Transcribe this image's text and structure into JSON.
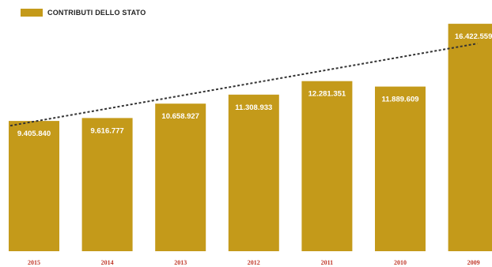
{
  "legend": {
    "label": "CONTRIBUTI DELLO STATO",
    "color": "#C49A1A"
  },
  "chart_data": {
    "type": "bar",
    "categories": [
      "2015",
      "2014",
      "2013",
      "2012",
      "2011",
      "2010",
      "2009"
    ],
    "series": [
      {
        "name": "CONTRIBUTI DELLO STATO",
        "values": [
          9405840,
          9616777,
          10658927,
          11308933,
          12281351,
          11889609,
          16422559
        ]
      }
    ],
    "data_labels": [
      "9.405.840",
      "9.616.777",
      "10.658.927",
      "11.308.933",
      "12.281.351",
      "11.889.609",
      "16.422.559"
    ],
    "trendline": {
      "style": "dashed",
      "color": "#333333"
    },
    "title": "",
    "xlabel": "",
    "ylabel": "",
    "ylim": [
      0,
      17000000
    ],
    "grid": false,
    "legend_position": "top-left",
    "colors": {
      "bar": "#C49A1A",
      "data_label": "#ffffff",
      "tick_label": "#C0392B"
    }
  }
}
